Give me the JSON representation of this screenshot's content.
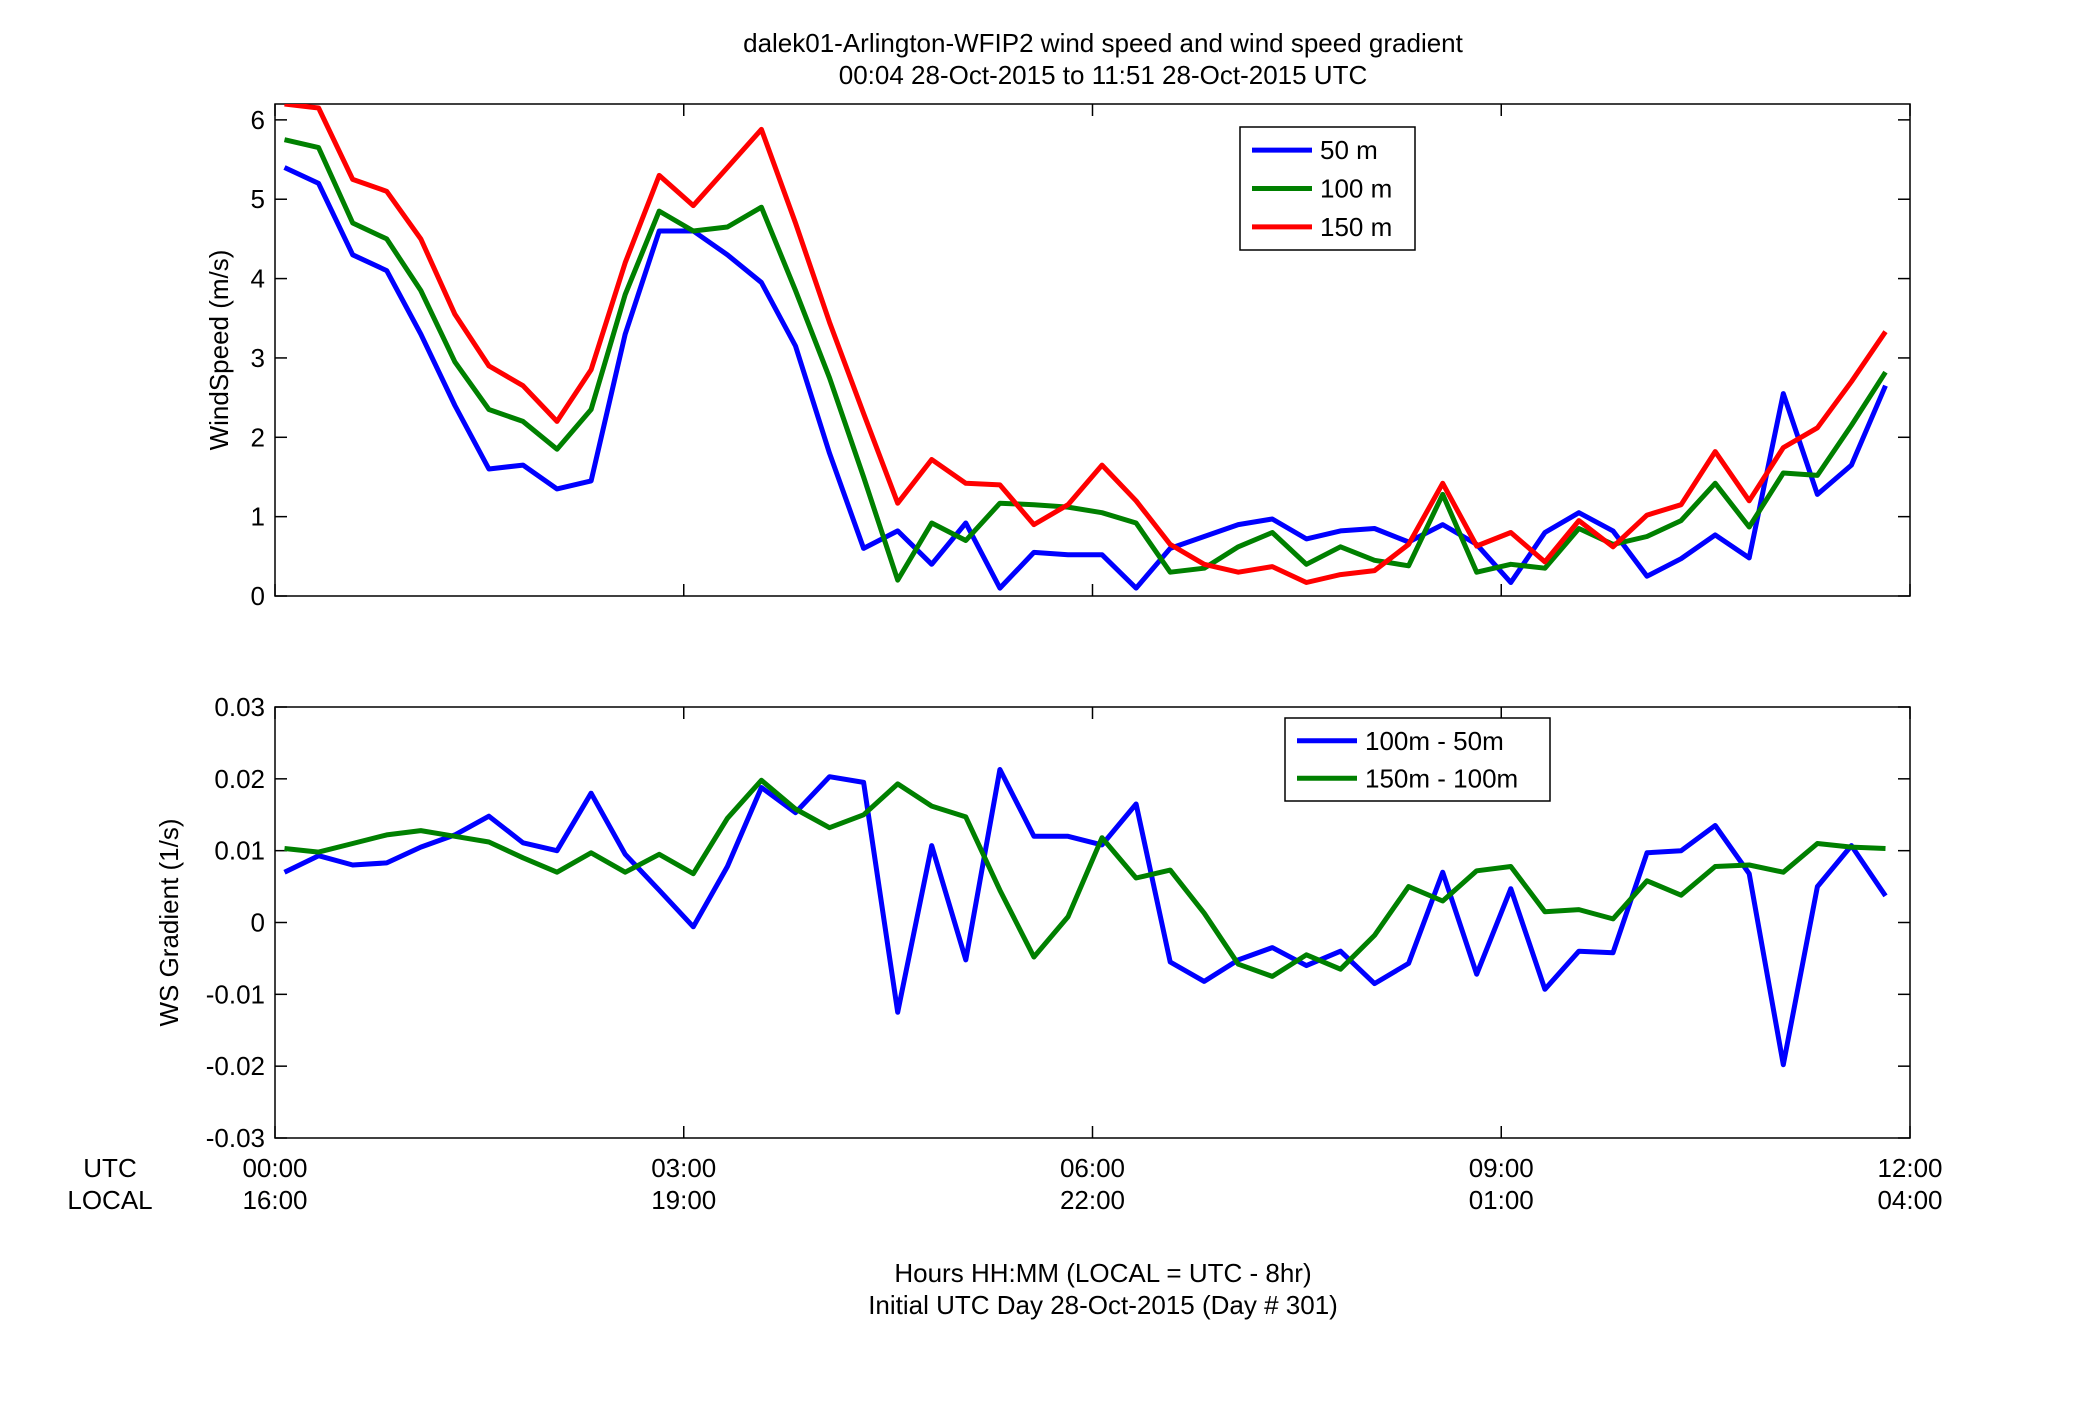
{
  "figure": {
    "title_line1": "dalek01-Arlington-WFIP2  wind speed and wind speed gradient",
    "title_line2": "00:04 28-Oct-2015 to 11:51 28-Oct-2015  UTC",
    "time_label_utc": "UTC",
    "time_label_local": "LOCAL",
    "xticks_utc": [
      "00:00",
      "03:00",
      "06:00",
      "09:00",
      "12:00"
    ],
    "xticks_local": [
      "16:00",
      "19:00",
      "22:00",
      "01:00",
      "04:00"
    ],
    "xlabel_line1": "Hours HH:MM  (LOCAL = UTC - 8hr)",
    "xlabel_line2": "Initial UTC Day 28-Oct-2015 (Day # 301)"
  },
  "chart_data": [
    {
      "type": "line",
      "ylabel": "WindSpeed (m/s)",
      "xlim": [
        0,
        12
      ],
      "ylim": [
        0,
        6.2
      ],
      "yticks": [
        0,
        1,
        2,
        3,
        4,
        5,
        6
      ],
      "xticks": [
        0,
        3,
        6,
        9,
        12
      ],
      "legend_position": "top-center",
      "x": [
        0.07,
        0.32,
        0.57,
        0.82,
        1.07,
        1.32,
        1.57,
        1.82,
        2.07,
        2.32,
        2.57,
        2.82,
        3.07,
        3.32,
        3.57,
        3.82,
        4.07,
        4.32,
        4.57,
        4.82,
        5.07,
        5.32,
        5.57,
        5.82,
        6.07,
        6.32,
        6.57,
        6.82,
        7.07,
        7.32,
        7.57,
        7.82,
        8.07,
        8.32,
        8.57,
        8.82,
        9.07,
        9.32,
        9.57,
        9.82,
        10.07,
        10.32,
        10.57,
        10.82,
        11.07,
        11.32,
        11.57,
        11.82
      ],
      "series": [
        {
          "name": "50 m",
          "color": "#0000ff",
          "values": [
            5.4,
            5.2,
            4.3,
            4.1,
            3.3,
            2.4,
            1.6,
            1.65,
            1.35,
            1.45,
            3.3,
            4.6,
            4.6,
            4.3,
            3.95,
            3.15,
            1.8,
            0.6,
            0.82,
            0.4,
            0.92,
            0.1,
            0.55,
            0.52,
            0.52,
            0.1,
            0.6,
            0.75,
            0.9,
            0.97,
            0.72,
            0.82,
            0.85,
            0.68,
            0.9,
            0.65,
            0.17,
            0.8,
            1.05,
            0.82,
            0.25,
            0.47,
            0.77,
            0.48,
            2.55,
            1.28,
            1.65,
            2.65
          ]
        },
        {
          "name": "100 m",
          "color": "#008000",
          "values": [
            5.75,
            5.65,
            4.7,
            4.5,
            3.85,
            2.95,
            2.35,
            2.2,
            1.85,
            2.35,
            3.8,
            4.85,
            4.6,
            4.65,
            4.9,
            3.85,
            2.75,
            1.5,
            0.2,
            0.92,
            0.7,
            1.17,
            1.15,
            1.12,
            1.05,
            0.92,
            0.3,
            0.35,
            0.62,
            0.8,
            0.4,
            0.62,
            0.45,
            0.38,
            1.28,
            0.3,
            0.4,
            0.35,
            0.85,
            0.65,
            0.75,
            0.95,
            1.42,
            0.87,
            1.55,
            1.52,
            2.15,
            2.82
          ]
        },
        {
          "name": "150 m",
          "color": "#ff0000",
          "values": [
            6.2,
            6.15,
            5.25,
            5.1,
            4.5,
            3.55,
            2.9,
            2.65,
            2.2,
            2.85,
            4.2,
            5.3,
            4.92,
            5.4,
            5.88,
            4.7,
            3.45,
            2.3,
            1.17,
            1.72,
            1.42,
            1.4,
            0.9,
            1.15,
            1.65,
            1.2,
            0.65,
            0.4,
            0.3,
            0.37,
            0.17,
            0.27,
            0.32,
            0.65,
            1.42,
            0.63,
            0.8,
            0.43,
            0.95,
            0.62,
            1.02,
            1.15,
            1.82,
            1.2,
            1.87,
            2.12,
            2.7,
            3.33
          ]
        }
      ]
    },
    {
      "type": "line",
      "ylabel": "WS Gradient (1/s)",
      "xlim": [
        0,
        12
      ],
      "ylim": [
        -0.03,
        0.03
      ],
      "yticks": [
        -0.03,
        -0.02,
        -0.01,
        0,
        0.01,
        0.02,
        0.03
      ],
      "ytick_labels": [
        "-0.03",
        "-0.02",
        "-0.01",
        "0",
        "0.01",
        "0.02",
        "0.03"
      ],
      "xticks": [
        0,
        3,
        6,
        9,
        12
      ],
      "legend_position": "top-center",
      "x": [
        0.07,
        0.32,
        0.57,
        0.82,
        1.07,
        1.32,
        1.57,
        1.82,
        2.07,
        2.32,
        2.57,
        2.82,
        3.07,
        3.32,
        3.57,
        3.82,
        4.07,
        4.32,
        4.57,
        4.82,
        5.07,
        5.32,
        5.57,
        5.82,
        6.07,
        6.32,
        6.57,
        6.82,
        7.07,
        7.32,
        7.57,
        7.82,
        8.07,
        8.32,
        8.57,
        8.82,
        9.07,
        9.32,
        9.57,
        9.82,
        10.07,
        10.32,
        10.57,
        10.82,
        11.07,
        11.32,
        11.57,
        11.82
      ],
      "series": [
        {
          "name": "100m - 50m",
          "color": "#0000ff",
          "values": [
            0.007,
            0.0093,
            0.008,
            0.0083,
            0.0105,
            0.0122,
            0.0148,
            0.0111,
            0.01,
            0.018,
            0.0095,
            0.0045,
            -0.0006,
            0.0078,
            0.0188,
            0.0153,
            0.0203,
            0.0195,
            -0.0125,
            0.0107,
            -0.0052,
            0.0213,
            0.012,
            0.012,
            0.0108,
            0.0165,
            -0.0055,
            -0.0082,
            -0.0052,
            -0.0035,
            -0.006,
            -0.004,
            -0.0085,
            -0.0057,
            0.007,
            -0.0072,
            0.0047,
            -0.0093,
            -0.004,
            -0.0042,
            0.0097,
            0.01,
            0.0135,
            0.0068,
            -0.0198,
            0.005,
            0.0107,
            0.0037
          ]
        },
        {
          "name": "150m - 100m",
          "color": "#008000",
          "values": [
            0.0103,
            0.0098,
            0.011,
            0.0122,
            0.0128,
            0.012,
            0.0112,
            0.009,
            0.007,
            0.0097,
            0.007,
            0.0095,
            0.0068,
            0.0145,
            0.0198,
            0.0158,
            0.0132,
            0.015,
            0.0193,
            0.0162,
            0.0147,
            0.0045,
            -0.0048,
            0.0008,
            0.0118,
            0.0062,
            0.0073,
            0.0013,
            -0.0058,
            -0.0075,
            -0.0045,
            -0.0065,
            -0.0018,
            0.005,
            0.003,
            0.0072,
            0.0078,
            0.0015,
            0.0018,
            0.0005,
            0.0058,
            0.0038,
            0.0078,
            0.008,
            0.007,
            0.011,
            0.0105,
            0.0103
          ]
        }
      ]
    }
  ]
}
